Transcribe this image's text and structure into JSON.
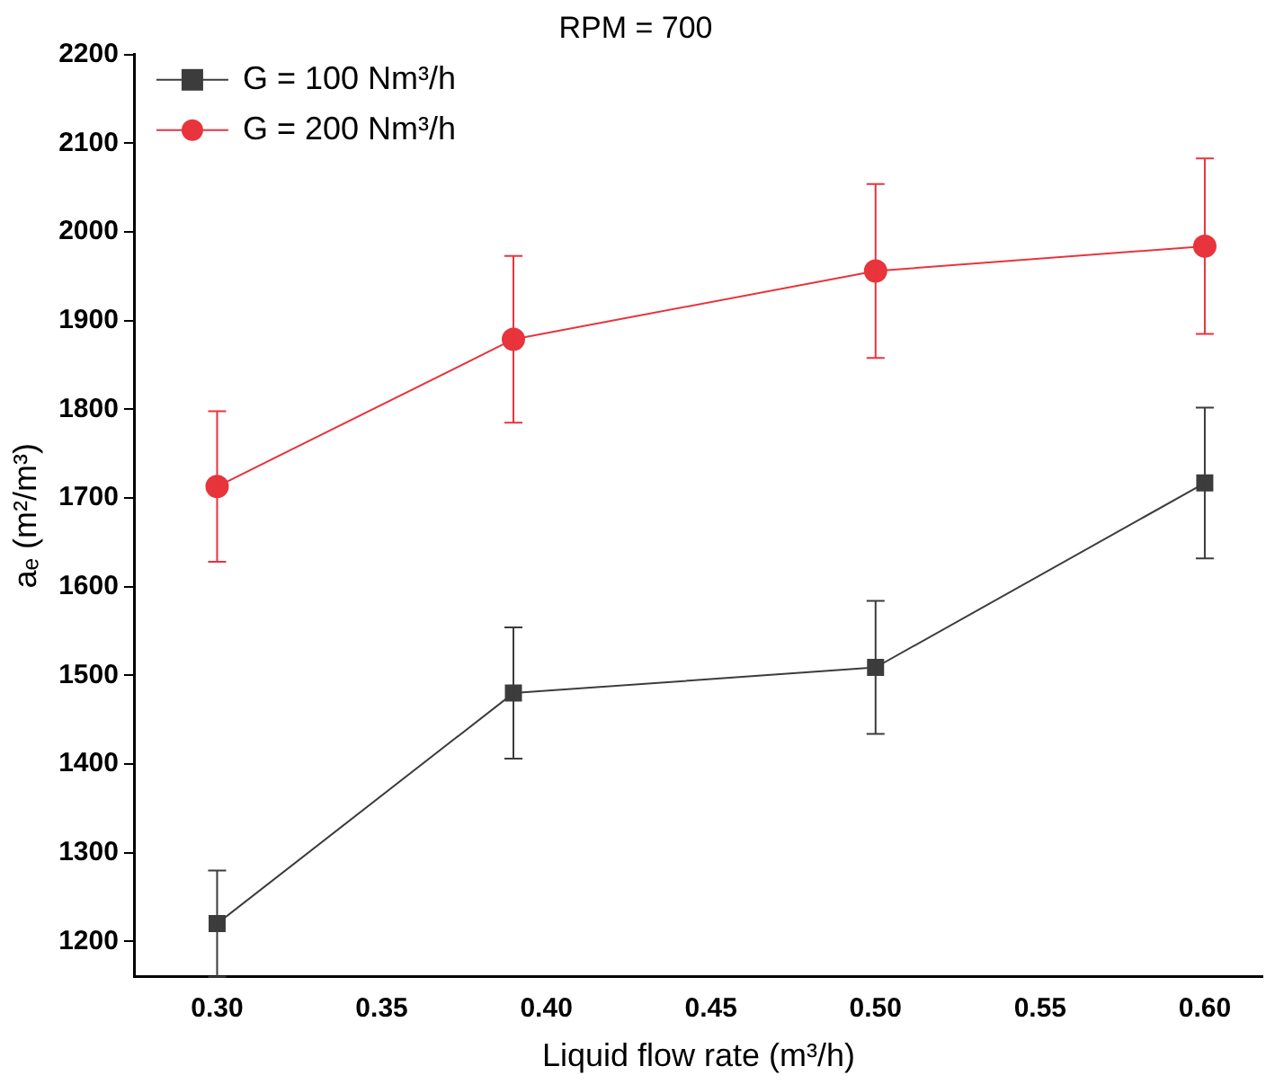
{
  "chart_data": {
    "type": "line",
    "title": "RPM = 700",
    "xlabel": "Liquid flow rate (m³/h)",
    "ylabel": "aₑ (m²/m³)",
    "x": [
      0.3,
      0.39,
      0.5,
      0.6
    ],
    "xlim": [
      0.275,
      0.6175
    ],
    "xticks": [
      {
        "value": 0.3,
        "label": "0.30"
      },
      {
        "value": 0.35,
        "label": "0.35"
      },
      {
        "value": 0.4,
        "label": "0.40"
      },
      {
        "value": 0.45,
        "label": "0.45"
      },
      {
        "value": 0.5,
        "label": "0.50"
      },
      {
        "value": 0.55,
        "label": "0.55"
      },
      {
        "value": 0.6,
        "label": "0.60"
      }
    ],
    "ylim": [
      1160,
      2200
    ],
    "yticks": [
      1200,
      1300,
      1400,
      1500,
      1600,
      1700,
      1800,
      1900,
      2000,
      2100,
      2200
    ],
    "series": [
      {
        "name": "G = 100 Nm³/h",
        "color": "#3c3c3c",
        "marker": "square",
        "values": [
          1220,
          1480,
          1509,
          1717
        ],
        "errors": [
          60,
          74,
          75,
          85
        ]
      },
      {
        "name": "G = 200 Nm³/h",
        "color": "#e8343c",
        "marker": "circle",
        "values": [
          1713,
          1879,
          1956,
          1984
        ],
        "errors": [
          85,
          94,
          98,
          99
        ]
      }
    ],
    "grid": false,
    "legend": "top left",
    "line_style": "solid"
  }
}
